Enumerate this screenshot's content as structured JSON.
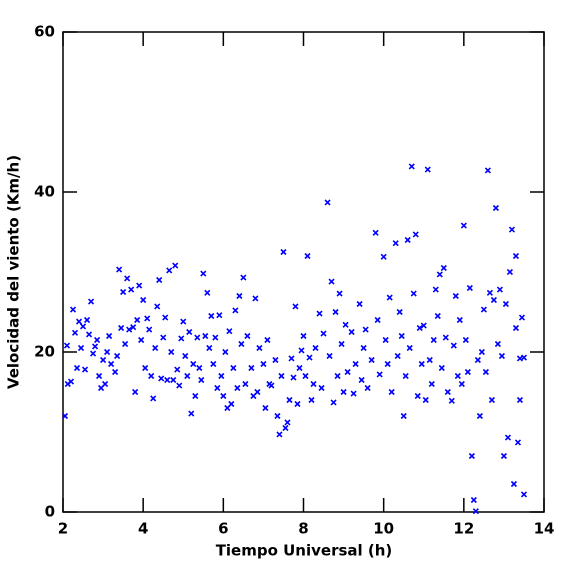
{
  "chart_data": {
    "type": "scatter",
    "xlabel": "Tiempo Universal (h)",
    "ylabel": "Velocidad del viento (Km/h)",
    "color": "#0000ff",
    "xlim": [
      2,
      14
    ],
    "ylim": [
      0,
      60
    ],
    "xticks": [
      2,
      4,
      6,
      8,
      10,
      12,
      14
    ],
    "yticks": [
      0,
      20,
      40,
      60
    ],
    "x": [
      2.05,
      2.1,
      2.12,
      2.2,
      2.25,
      2.3,
      2.35,
      2.4,
      2.45,
      2.5,
      2.55,
      2.6,
      2.65,
      2.7,
      2.75,
      2.8,
      2.85,
      2.9,
      2.95,
      3.0,
      3.05,
      3.1,
      3.15,
      3.2,
      3.3,
      3.35,
      3.4,
      3.45,
      3.5,
      3.55,
      3.6,
      3.65,
      3.7,
      3.75,
      3.8,
      3.85,
      3.9,
      3.95,
      4.0,
      4.05,
      4.1,
      4.15,
      4.2,
      4.25,
      4.3,
      4.35,
      4.4,
      4.45,
      4.5,
      4.55,
      4.6,
      4.65,
      4.7,
      4.75,
      4.8,
      4.85,
      4.9,
      4.95,
      5.0,
      5.05,
      5.1,
      5.15,
      5.2,
      5.25,
      5.3,
      5.35,
      5.4,
      5.45,
      5.5,
      5.55,
      5.6,
      5.65,
      5.7,
      5.75,
      5.8,
      5.85,
      5.9,
      5.95,
      6.0,
      6.05,
      6.1,
      6.15,
      6.2,
      6.25,
      6.3,
      6.35,
      6.4,
      6.45,
      6.5,
      6.55,
      6.6,
      6.7,
      6.75,
      6.8,
      6.85,
      6.9,
      7.0,
      7.05,
      7.1,
      7.15,
      7.2,
      7.3,
      7.35,
      7.4,
      7.45,
      7.5,
      7.55,
      7.6,
      7.65,
      7.7,
      7.75,
      7.8,
      7.85,
      7.9,
      7.95,
      8.0,
      8.05,
      8.1,
      8.15,
      8.2,
      8.25,
      8.3,
      8.4,
      8.45,
      8.5,
      8.6,
      8.65,
      8.7,
      8.75,
      8.8,
      8.85,
      8.9,
      8.95,
      9.0,
      9.05,
      9.1,
      9.2,
      9.25,
      9.3,
      9.4,
      9.45,
      9.5,
      9.55,
      9.6,
      9.7,
      9.8,
      9.85,
      9.9,
      10.0,
      10.05,
      10.1,
      10.15,
      10.2,
      10.3,
      10.35,
      10.4,
      10.45,
      10.5,
      10.55,
      10.6,
      10.65,
      10.7,
      10.75,
      10.8,
      10.85,
      10.9,
      10.95,
      11.0,
      11.05,
      11.1,
      11.15,
      11.2,
      11.25,
      11.3,
      11.35,
      11.4,
      11.45,
      11.5,
      11.55,
      11.6,
      11.7,
      11.75,
      11.8,
      11.85,
      11.9,
      11.95,
      12.0,
      12.05,
      12.1,
      12.15,
      12.2,
      12.25,
      12.3,
      12.35,
      12.4,
      12.45,
      12.5,
      12.55,
      12.6,
      12.65,
      12.7,
      12.75,
      12.8,
      12.85,
      12.9,
      12.95,
      13.0,
      13.05,
      13.1,
      13.15,
      13.2,
      13.25,
      13.3,
      13.35,
      13.4,
      13.45,
      13.5,
      13.5,
      13.3,
      13.4
    ],
    "values": [
      12,
      20.8,
      16,
      16.3,
      25.3,
      22.4,
      18,
      23.8,
      20.5,
      23.2,
      17.8,
      24,
      22.2,
      26.3,
      19.8,
      20.7,
      21.5,
      17,
      15.5,
      19,
      16,
      20,
      22,
      18.5,
      17.5,
      19.5,
      30.3,
      23,
      27.5,
      21,
      29.2,
      22.8,
      27.8,
      23.1,
      15,
      24,
      28.3,
      21.5,
      26.5,
      18,
      24.2,
      22.8,
      17,
      14.2,
      20.5,
      25.7,
      29,
      16.7,
      21.8,
      24.3,
      16.5,
      30.2,
      20,
      16.5,
      30.8,
      17.8,
      15.8,
      21.7,
      23.8,
      19.5,
      17,
      22.5,
      12.3,
      18.5,
      14.5,
      21.8,
      18,
      16.5,
      29.8,
      22,
      27.4,
      20.5,
      24.5,
      18.5,
      21.8,
      15.5,
      24.6,
      17,
      14.5,
      20,
      13,
      22.6,
      13.5,
      18,
      25.2,
      15.5,
      27,
      21,
      29.3,
      16,
      22,
      18,
      14.5,
      26.7,
      15,
      20.5,
      18.5,
      13,
      21.5,
      16,
      15.8,
      19,
      12,
      9.7,
      17,
      32.5,
      10.5,
      11.2,
      14,
      19.2,
      16.8,
      25.7,
      13.5,
      18,
      20.2,
      22,
      17,
      32,
      19.3,
      14,
      16,
      20.5,
      24.8,
      15.5,
      22.3,
      38.7,
      19.5,
      28.8,
      13.7,
      25,
      17,
      27.3,
      21,
      15,
      23.4,
      17.5,
      22.5,
      14.8,
      18.5,
      26,
      16.5,
      20.5,
      22.8,
      15.5,
      19,
      34.9,
      24,
      17.2,
      31.9,
      21.5,
      18.5,
      26.8,
      15,
      33.6,
      19.5,
      25,
      22,
      12,
      17,
      34,
      20.5,
      43.2,
      27.3,
      34.7,
      14.5,
      23,
      18.5,
      23.3,
      14,
      42.8,
      19,
      16,
      21.5,
      27.8,
      24.5,
      29.7,
      18,
      30.5,
      21.8,
      15,
      13.9,
      20.8,
      27,
      17,
      24,
      16,
      35.8,
      21.5,
      17.5,
      28,
      7,
      1.5,
      0.1,
      19,
      12,
      20,
      25.3,
      17.5,
      42.7,
      27.4,
      14,
      26.5,
      38,
      21,
      27.8,
      19.5,
      7,
      26,
      9.3,
      30,
      35.3,
      3.5,
      32,
      8.7,
      14,
      24.3,
      2.2,
      19.3,
      23,
      19.2
    ]
  }
}
